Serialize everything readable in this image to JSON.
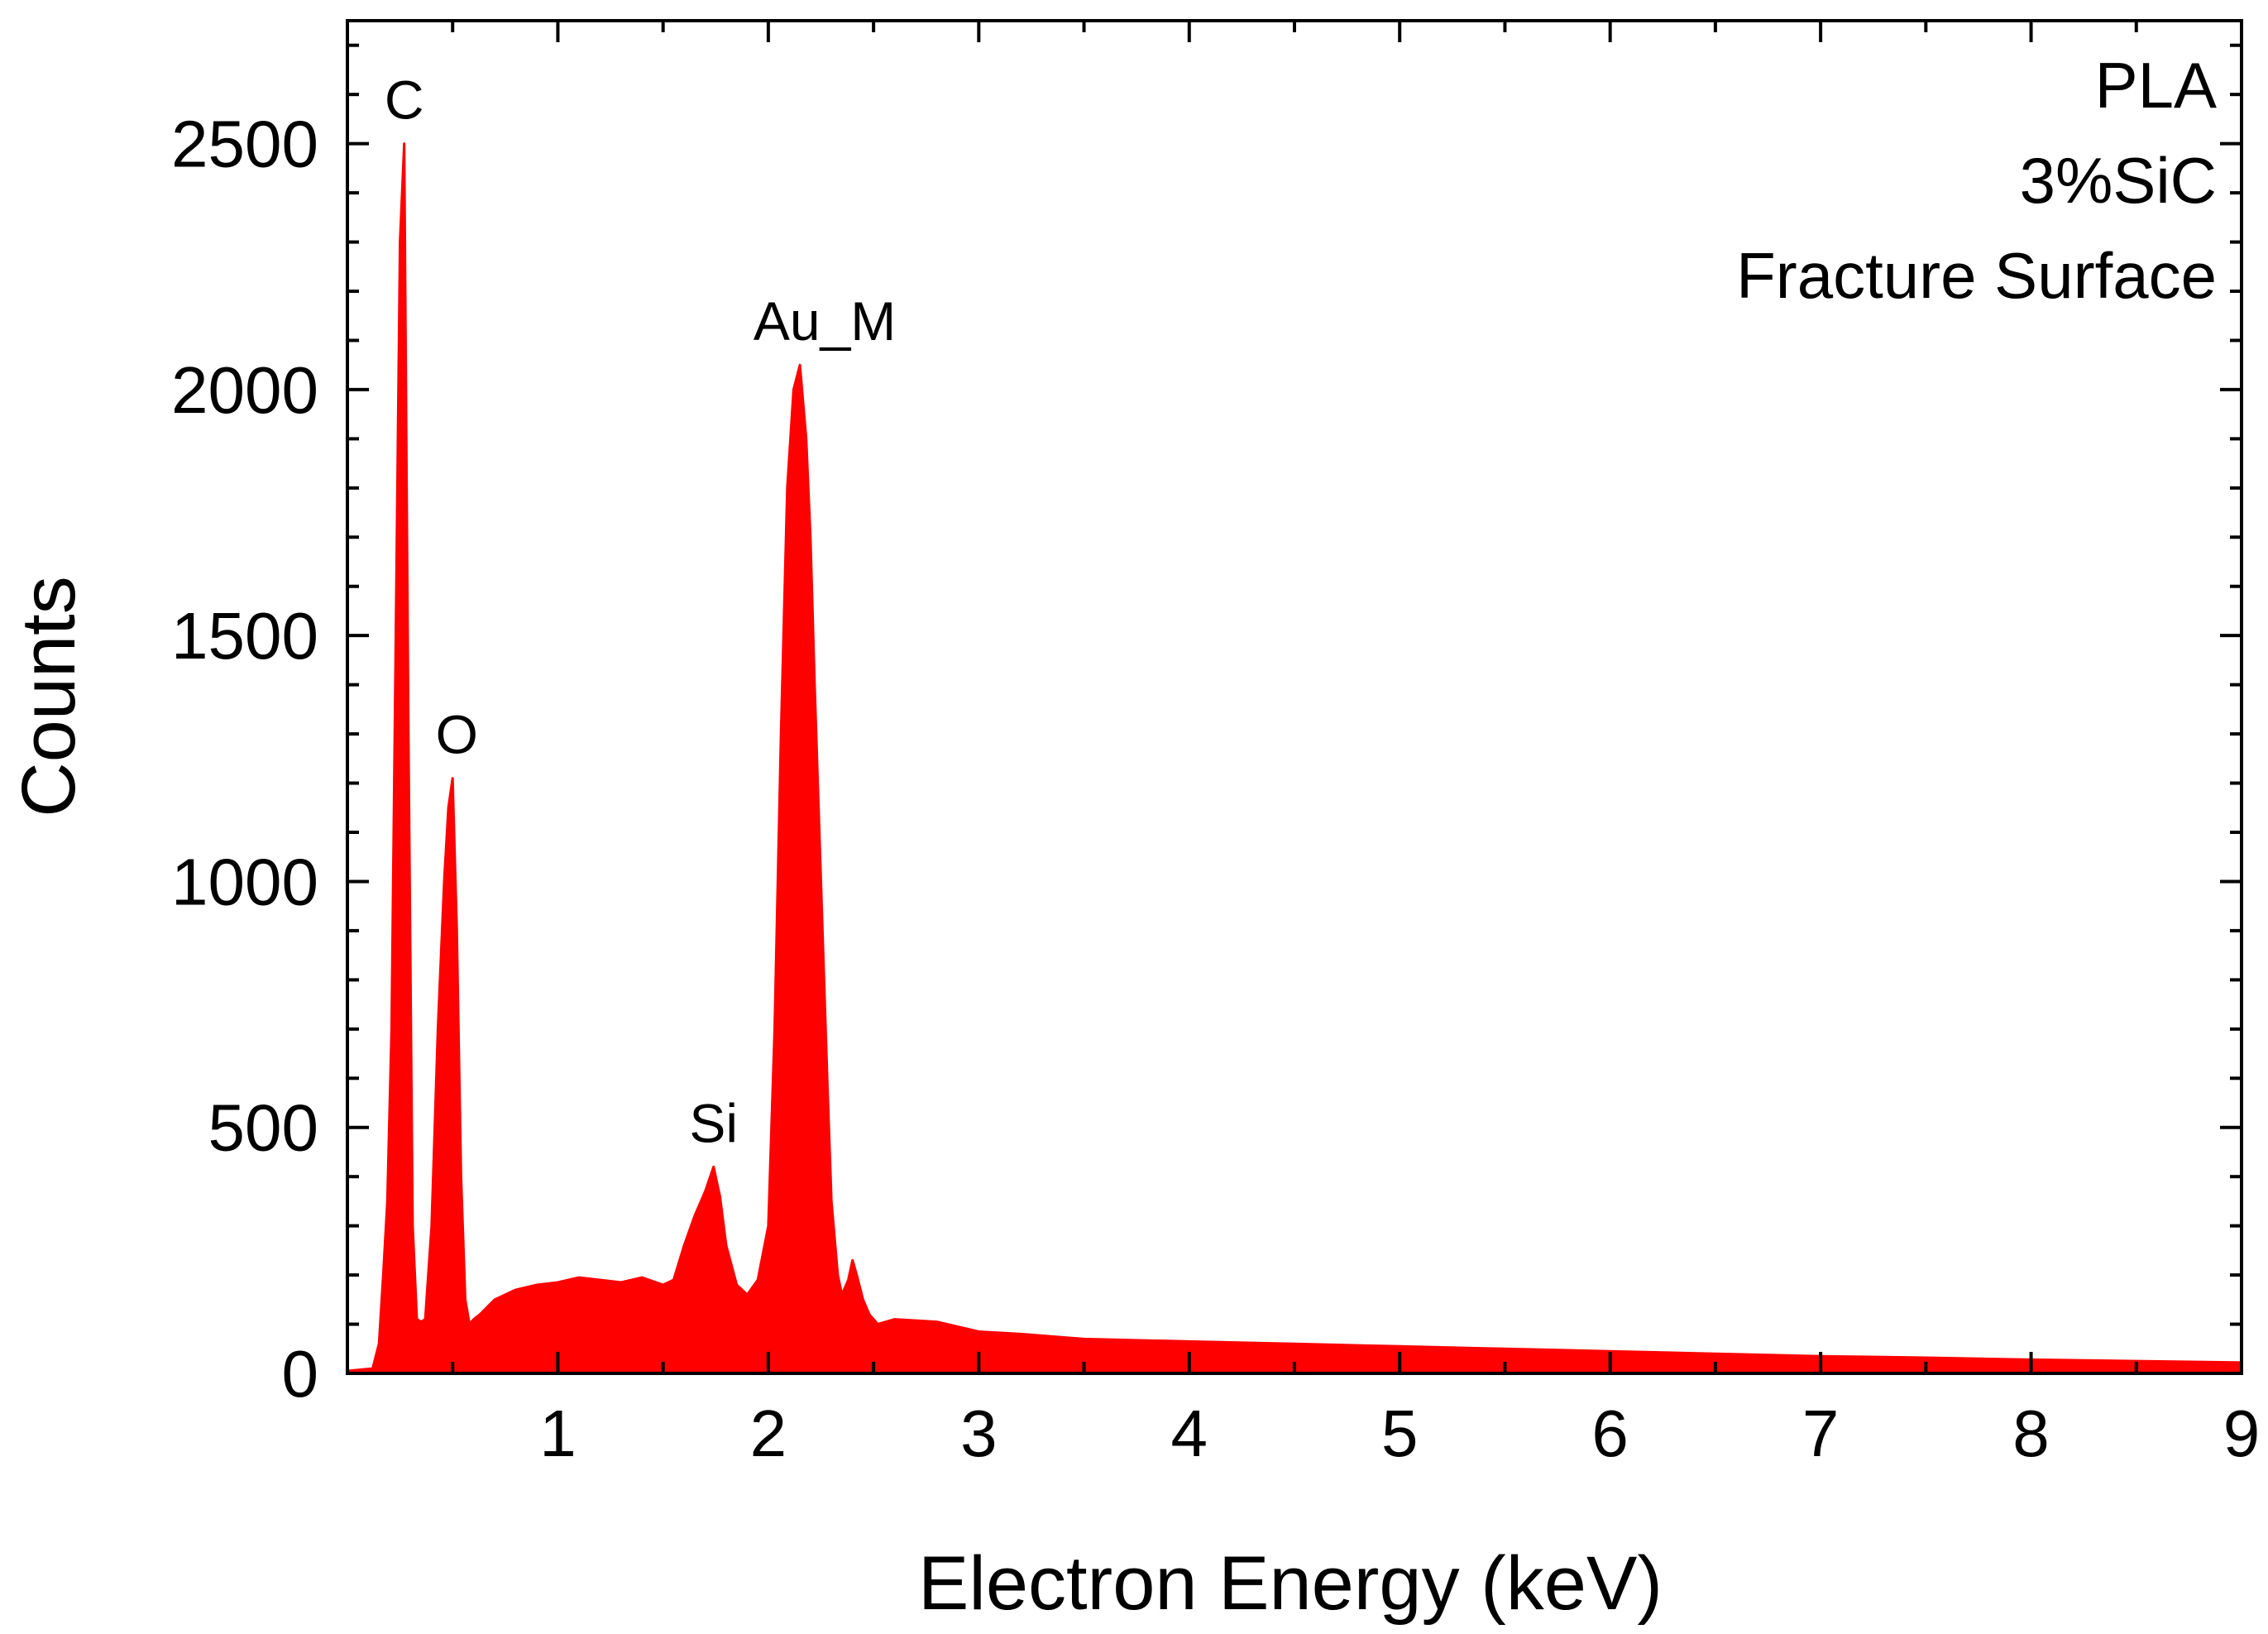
{
  "chart_data": {
    "type": "area",
    "xlabel": "Electron Energy (keV)",
    "ylabel": "Counts",
    "xlim": [
      0,
      9
    ],
    "ylim": [
      0,
      2750
    ],
    "x_ticks": [
      1,
      2,
      3,
      4,
      5,
      6,
      7,
      8,
      9
    ],
    "y_ticks": [
      0,
      500,
      1000,
      1500,
      2000,
      2500
    ],
    "grid": false,
    "series_color": "#ff0000",
    "legend_lines": [
      "PLA",
      "3%SiC",
      "Fracture Surface"
    ],
    "legend_position": "top-right",
    "peaks": [
      {
        "label": "C",
        "x": 0.27,
        "y": 2500
      },
      {
        "label": "O",
        "x": 0.52,
        "y": 1210
      },
      {
        "label": "Si",
        "x": 1.74,
        "y": 420
      },
      {
        "label": "Au_M",
        "x": 2.15,
        "y": 2050
      }
    ],
    "series": [
      {
        "x": [
          0.0,
          0.12,
          0.15,
          0.17,
          0.19,
          0.21,
          0.23,
          0.25,
          0.27,
          0.29,
          0.31,
          0.33,
          0.35,
          0.37,
          0.4,
          0.43,
          0.46,
          0.48,
          0.5,
          0.52,
          0.54,
          0.56,
          0.58,
          0.6,
          0.63,
          0.7,
          0.8,
          0.9,
          1.0,
          1.1,
          1.2,
          1.3,
          1.4,
          1.5,
          1.55,
          1.6,
          1.65,
          1.7,
          1.74,
          1.77,
          1.8,
          1.85,
          1.9,
          1.95,
          2.0,
          2.03,
          2.06,
          2.09,
          2.12,
          2.15,
          2.18,
          2.2,
          2.22,
          2.25,
          2.28,
          2.3,
          2.33,
          2.35,
          2.38,
          2.4,
          2.42,
          2.45,
          2.48,
          2.52,
          2.6,
          2.8,
          3.0,
          3.2,
          3.5,
          4.0,
          4.5,
          5.0,
          5.5,
          6.0,
          6.5,
          7.0,
          7.5,
          8.0,
          8.5,
          9.0
        ],
        "y": [
          5,
          10,
          60,
          200,
          350,
          700,
          1500,
          2300,
          2500,
          1300,
          300,
          110,
          105,
          110,
          300,
          700,
          1000,
          1150,
          1210,
          900,
          400,
          150,
          100,
          110,
          120,
          150,
          170,
          180,
          185,
          195,
          190,
          185,
          195,
          180,
          190,
          260,
          320,
          370,
          420,
          360,
          260,
          180,
          160,
          190,
          300,
          700,
          1300,
          1800,
          2000,
          2050,
          1900,
          1700,
          1400,
          1000,
          600,
          350,
          200,
          160,
          190,
          230,
          200,
          150,
          120,
          100,
          110,
          105,
          85,
          80,
          70,
          65,
          60,
          55,
          50,
          45,
          40,
          35,
          32,
          28,
          25,
          22
        ]
      }
    ]
  }
}
